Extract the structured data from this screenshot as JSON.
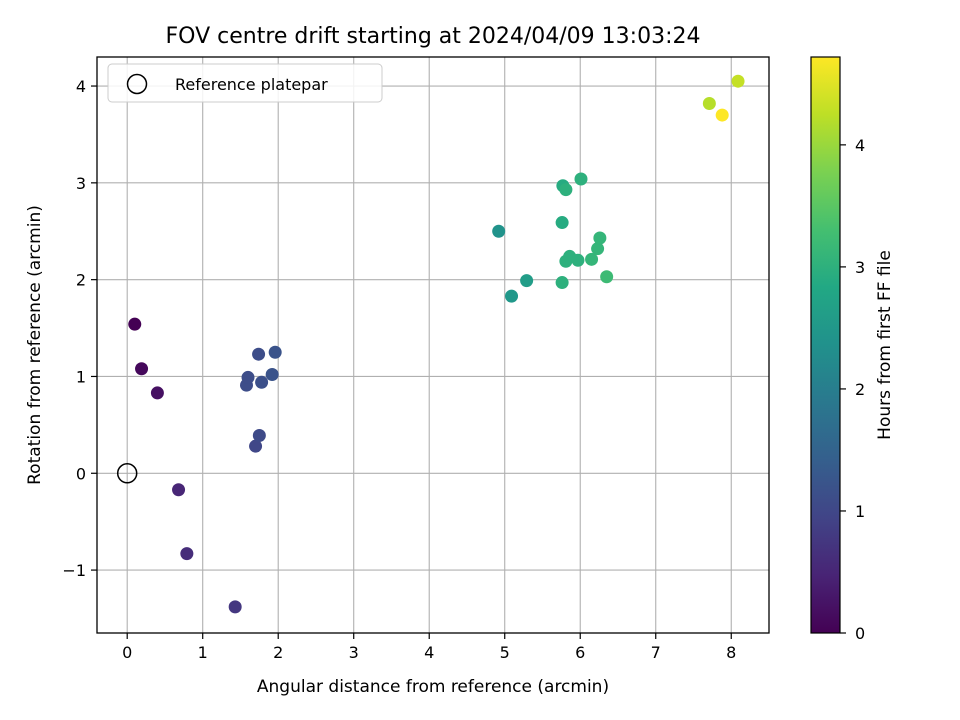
{
  "chart_data": {
    "type": "scatter",
    "title": "FOV centre drift starting at 2024/04/09 13:03:24",
    "xlabel": "Angular distance from reference (arcmin)",
    "ylabel": "Rotation from reference (arcmin)",
    "xlim": [
      -0.4,
      8.5
    ],
    "ylim": [
      -1.65,
      4.3
    ],
    "x_ticks": [
      0,
      1,
      2,
      3,
      4,
      5,
      6,
      7,
      8
    ],
    "y_ticks": [
      -1,
      0,
      1,
      2,
      3,
      4
    ],
    "x_tick_labels": [
      "0",
      "1",
      "2",
      "3",
      "4",
      "5",
      "6",
      "7",
      "8"
    ],
    "y_tick_labels": [
      "−1",
      "0",
      "1",
      "2",
      "3",
      "4"
    ],
    "grid": true,
    "legend": {
      "placement": "top-left",
      "entries": [
        {
          "label": "Reference platepar",
          "marker": "open-circle",
          "x": 0,
          "y": 0
        }
      ]
    },
    "colorbar": {
      "label": "Hours from first FF file",
      "range": [
        0,
        4.72
      ],
      "ticks": [
        0,
        1,
        2,
        3,
        4
      ],
      "tick_labels": [
        "0",
        "1",
        "2",
        "3",
        "4"
      ],
      "colormap": "viridis"
    },
    "points": [
      {
        "x": 0.1,
        "y": 1.54,
        "hours": 0.0
      },
      {
        "x": 0.19,
        "y": 1.08,
        "hours": 0.1
      },
      {
        "x": 0.4,
        "y": 0.83,
        "hours": 0.2
      },
      {
        "x": 0.68,
        "y": -0.17,
        "hours": 0.5
      },
      {
        "x": 0.79,
        "y": -0.83,
        "hours": 0.6
      },
      {
        "x": 1.43,
        "y": -1.38,
        "hours": 0.75
      },
      {
        "x": 1.7,
        "y": 0.28,
        "hours": 1.0
      },
      {
        "x": 1.75,
        "y": 0.39,
        "hours": 1.05
      },
      {
        "x": 1.58,
        "y": 0.91,
        "hours": 1.1
      },
      {
        "x": 1.6,
        "y": 0.99,
        "hours": 1.1
      },
      {
        "x": 1.78,
        "y": 0.94,
        "hours": 1.15
      },
      {
        "x": 1.92,
        "y": 1.02,
        "hours": 1.2
      },
      {
        "x": 1.74,
        "y": 1.23,
        "hours": 1.1
      },
      {
        "x": 1.96,
        "y": 1.25,
        "hours": 1.2
      },
      {
        "x": 4.92,
        "y": 2.5,
        "hours": 2.4
      },
      {
        "x": 5.09,
        "y": 1.83,
        "hours": 2.5
      },
      {
        "x": 5.29,
        "y": 1.99,
        "hours": 2.6
      },
      {
        "x": 5.76,
        "y": 1.97,
        "hours": 3.0
      },
      {
        "x": 5.76,
        "y": 2.59,
        "hours": 2.9
      },
      {
        "x": 5.77,
        "y": 2.97,
        "hours": 2.9
      },
      {
        "x": 5.81,
        "y": 2.93,
        "hours": 3.0
      },
      {
        "x": 5.81,
        "y": 2.19,
        "hours": 3.0
      },
      {
        "x": 5.86,
        "y": 2.24,
        "hours": 3.0
      },
      {
        "x": 5.97,
        "y": 2.2,
        "hours": 3.0
      },
      {
        "x": 6.01,
        "y": 3.04,
        "hours": 3.0
      },
      {
        "x": 6.15,
        "y": 2.21,
        "hours": 3.1
      },
      {
        "x": 6.23,
        "y": 2.32,
        "hours": 3.1
      },
      {
        "x": 6.26,
        "y": 2.43,
        "hours": 3.1
      },
      {
        "x": 6.35,
        "y": 2.03,
        "hours": 3.2
      },
      {
        "x": 7.71,
        "y": 3.82,
        "hours": 4.2
      },
      {
        "x": 7.88,
        "y": 3.7,
        "hours": 4.72
      },
      {
        "x": 8.09,
        "y": 4.05,
        "hours": 4.3
      }
    ]
  }
}
